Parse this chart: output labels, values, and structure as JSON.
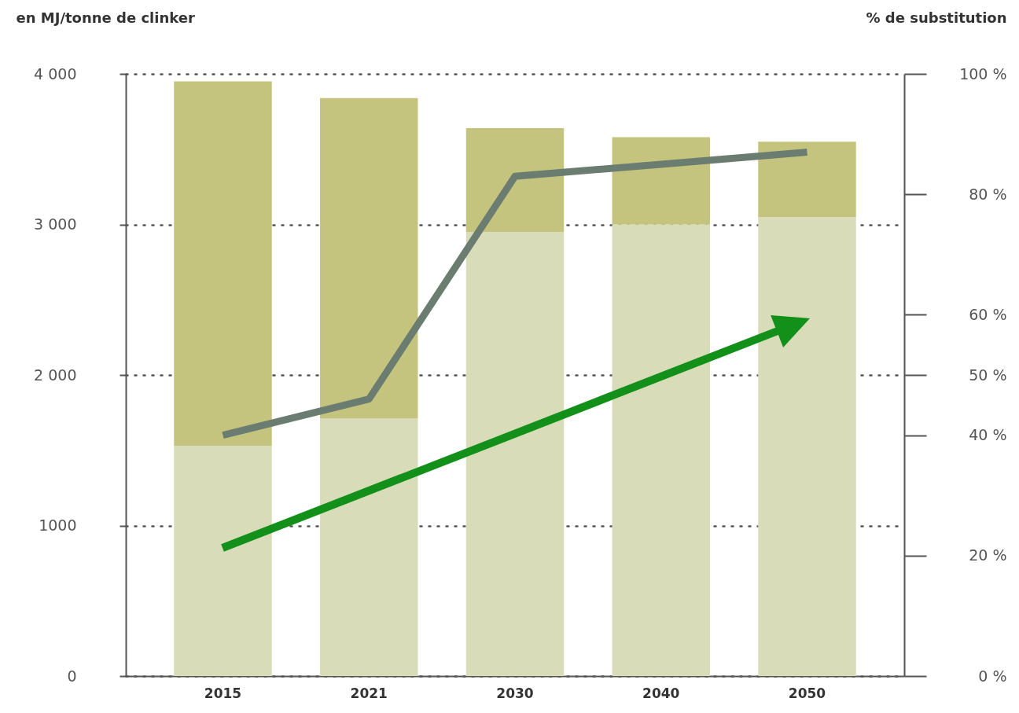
{
  "chart_data": {
    "type": "bar",
    "stacked": true,
    "ylabel": "en MJ/tonne de clinker",
    "y2label": "% de substitution",
    "categories": [
      "2015",
      "2021",
      "2030",
      "2040",
      "2050"
    ],
    "series": [
      {
        "color": "#d8dcb9",
        "values": [
          1530,
          1710,
          2950,
          3000,
          3050
        ]
      },
      {
        "color": "#c4c47e",
        "values": [
          2420,
          2130,
          690,
          580,
          500
        ]
      },
      {
        "type": "line",
        "axis": "y2",
        "color": "#6b7d70",
        "values": [
          40,
          46,
          83,
          85,
          87
        ]
      }
    ],
    "ylim": [
      0,
      4000
    ],
    "yticks": [
      0,
      {
        "value": 1000,
        "label": "1000"
      },
      {
        "value": 2000,
        "label": "2 000"
      },
      {
        "value": 3000,
        "label": "3 000"
      },
      {
        "value": 4000,
        "label": "4 000"
      }
    ],
    "y2lim": [
      0,
      100
    ],
    "y2ticks": [
      {
        "value": 0,
        "label": "0 %"
      },
      {
        "value": 20,
        "label": "20 %"
      },
      {
        "value": 40,
        "label": "40 %"
      },
      {
        "value": 50,
        "label": "50 %"
      },
      {
        "value": 60,
        "label": "60 %"
      },
      {
        "value": 80,
        "label": "80 %"
      },
      {
        "value": 100,
        "label": "100 %"
      }
    ],
    "grid": "y",
    "line_style": "solid",
    "legend": false
  }
}
